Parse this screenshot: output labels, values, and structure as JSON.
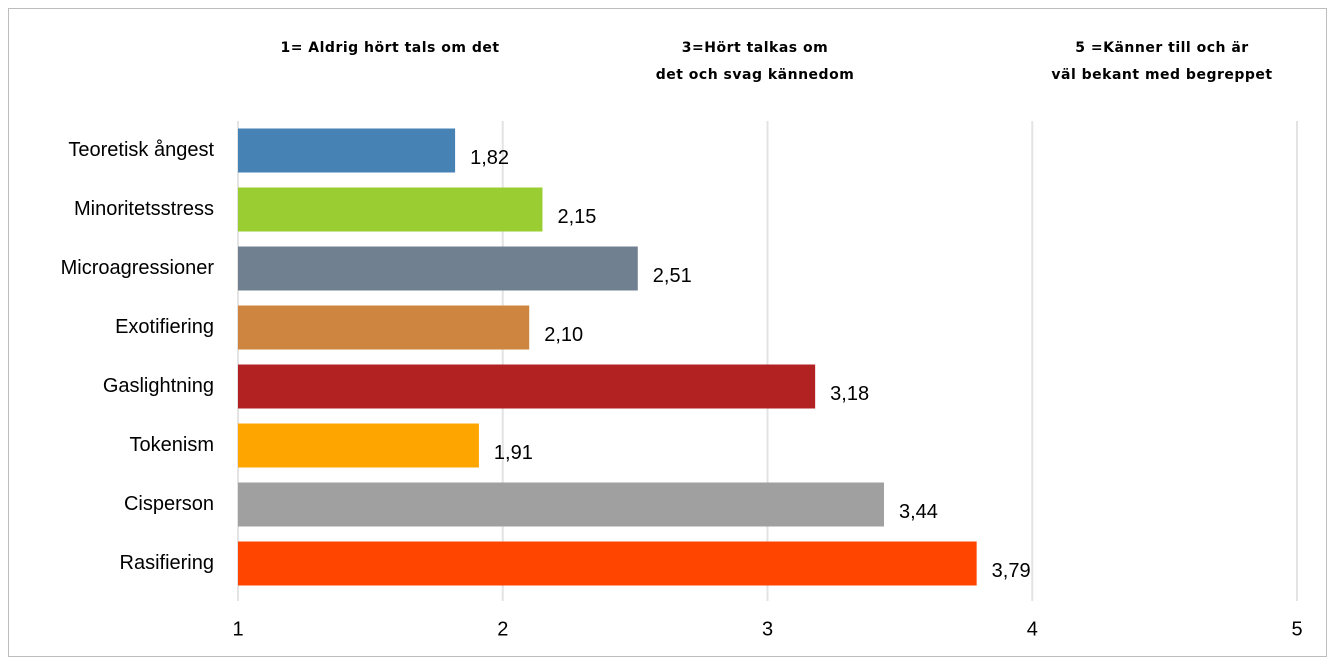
{
  "chart_data": {
    "type": "bar",
    "orientation": "horizontal",
    "annotations": [
      [
        "1= Aldrig hört tals om det"
      ],
      [
        "3=Hört talkas om",
        "det och svag kännedom"
      ],
      [
        "5 =Känner till och är",
        "väl bekant med begreppet"
      ]
    ],
    "categories": [
      "Teoretisk ångest",
      "Minoritetsstress",
      "Microagressioner",
      "Exotifiering",
      "Gaslightning",
      "Tokenism",
      "Cisperson",
      "Rasifiering"
    ],
    "values": [
      1.82,
      2.15,
      2.51,
      2.1,
      3.18,
      1.91,
      3.44,
      3.79
    ],
    "value_labels": [
      "1,82",
      "2,15",
      "2,51",
      "2,10",
      "3,18",
      "1,91",
      "3,44",
      "3,79"
    ],
    "colors": [
      "#4682b4",
      "#9acd32",
      "#708090",
      "#cd853f",
      "#b22222",
      "#ffa500",
      "#a0a0a0",
      "#ff4500"
    ],
    "xlim": [
      1,
      5
    ],
    "xticks": [
      1,
      2,
      3,
      4,
      5
    ],
    "grid": true
  }
}
